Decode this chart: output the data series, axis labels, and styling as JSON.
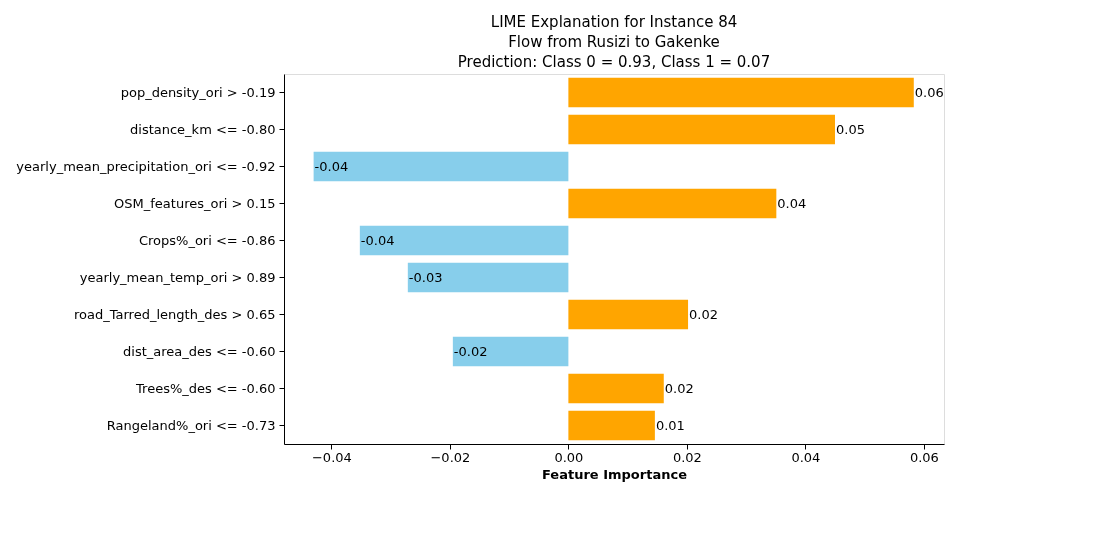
{
  "chart_data": {
    "type": "bar",
    "orientation": "horizontal",
    "title": "LIME Explanation for Instance 84\nFlow from Rusizi to Gakenke\nPrediction: Class 0 = 0.93, Class 1 = 0.07",
    "xlabel": "Feature Importance",
    "categories": [
      "pop_density_ori > -0.19",
      "distance_km <= -0.80",
      "yearly_mean_precipitation_ori <= -0.92",
      "OSM_features_ori > 0.15",
      "Crops%_ori <= -0.86",
      "yearly_mean_temp_ori > 0.89",
      "road_Tarred_length_des > 0.65",
      "dist_area_des <= -0.60",
      "Trees%_des <= -0.60",
      "Rangeland%_ori <= -0.73"
    ],
    "values": [
      0.0583,
      0.045,
      -0.043,
      0.0351,
      -0.0352,
      -0.0271,
      0.0202,
      -0.0195,
      0.0161,
      0.0146
    ],
    "value_labels": [
      "0.06",
      "0.05",
      "-0.04",
      "0.04",
      "-0.04",
      "-0.03",
      "0.02",
      "-0.02",
      "0.02",
      "0.01"
    ],
    "colors": [
      "#ffa500",
      "#ffa500",
      "#87ceeb",
      "#ffa500",
      "#87ceeb",
      "#87ceeb",
      "#ffa500",
      "#87ceeb",
      "#ffa500",
      "#ffa500"
    ],
    "xlim": [
      -0.048,
      0.0634
    ],
    "xticks": [
      {
        "value": -0.04,
        "label": "−0.04"
      },
      {
        "value": -0.02,
        "label": "−0.02"
      },
      {
        "value": 0,
        "label": "0.00"
      },
      {
        "value": 0.02,
        "label": "0.02"
      },
      {
        "value": 0.04,
        "label": "0.04"
      },
      {
        "value": 0.06,
        "label": "0.06"
      }
    ],
    "grid": false,
    "legend": false
  }
}
